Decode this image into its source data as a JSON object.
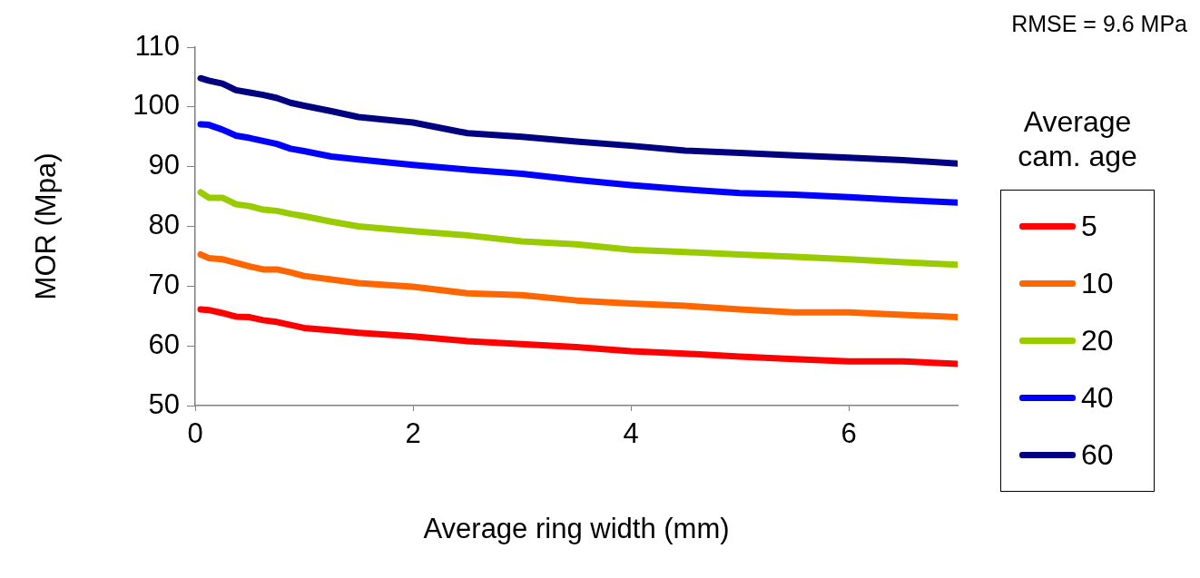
{
  "chart_data": {
    "type": "line",
    "xlabel": "Average ring width (mm)",
    "ylabel": "MOR (Mpa)",
    "legend_title": "Average cam. age",
    "annotations": [
      "RMSE = 9.6 MPa"
    ],
    "x": [
      0.05,
      0.125,
      0.25,
      0.375,
      0.5,
      0.625,
      0.75,
      0.875,
      1,
      1.25,
      1.5,
      2,
      2.5,
      3,
      3.5,
      4,
      4.5,
      5,
      5.5,
      6,
      6.5,
      7
    ],
    "xlim": [
      0,
      7
    ],
    "xticks": [
      0,
      2,
      4,
      6
    ],
    "ylim": [
      50,
      110
    ],
    "yticks": [
      50,
      60,
      70,
      80,
      90,
      100,
      110
    ],
    "grid": false,
    "legend": "right",
    "marker": "none",
    "line_style": "solid",
    "series": [
      {
        "name": "5",
        "color": "#ff0000",
        "values": [
          66.1,
          66.0,
          65.5,
          64.9,
          64.8,
          64.3,
          64.0,
          63.5,
          63.0,
          62.6,
          62.2,
          61.6,
          60.8,
          60.3,
          59.8,
          59.1,
          58.7,
          58.2,
          57.8,
          57.4,
          57.4,
          57.0
        ]
      },
      {
        "name": "10",
        "color": "#ff6600",
        "values": [
          75.3,
          74.7,
          74.5,
          73.9,
          73.3,
          72.8,
          72.8,
          72.3,
          71.7,
          71.1,
          70.5,
          69.9,
          68.8,
          68.5,
          67.6,
          67.1,
          66.7,
          66.1,
          65.6,
          65.6,
          65.2,
          64.8
        ]
      },
      {
        "name": "20",
        "color": "#99cc00",
        "values": [
          85.7,
          84.8,
          84.8,
          83.7,
          83.4,
          82.8,
          82.6,
          82.1,
          81.7,
          80.8,
          80.0,
          79.2,
          78.5,
          77.5,
          77.0,
          76.1,
          75.7,
          75.3,
          74.9,
          74.5,
          74.0,
          73.6
        ]
      },
      {
        "name": "40",
        "color": "#0000ff",
        "values": [
          97.1,
          97.0,
          96.2,
          95.2,
          94.8,
          94.3,
          93.8,
          93.0,
          92.6,
          91.7,
          91.2,
          90.3,
          89.5,
          88.8,
          87.8,
          86.9,
          86.2,
          85.6,
          85.3,
          84.9,
          84.4,
          84.0
        ]
      },
      {
        "name": "60",
        "color": "#000080",
        "values": [
          104.8,
          104.4,
          103.9,
          102.8,
          102.4,
          102.0,
          101.5,
          100.7,
          100.2,
          99.3,
          98.3,
          97.4,
          95.6,
          95.0,
          94.2,
          93.5,
          92.7,
          92.3,
          91.9,
          91.5,
          91.1,
          90.5
        ]
      }
    ]
  }
}
